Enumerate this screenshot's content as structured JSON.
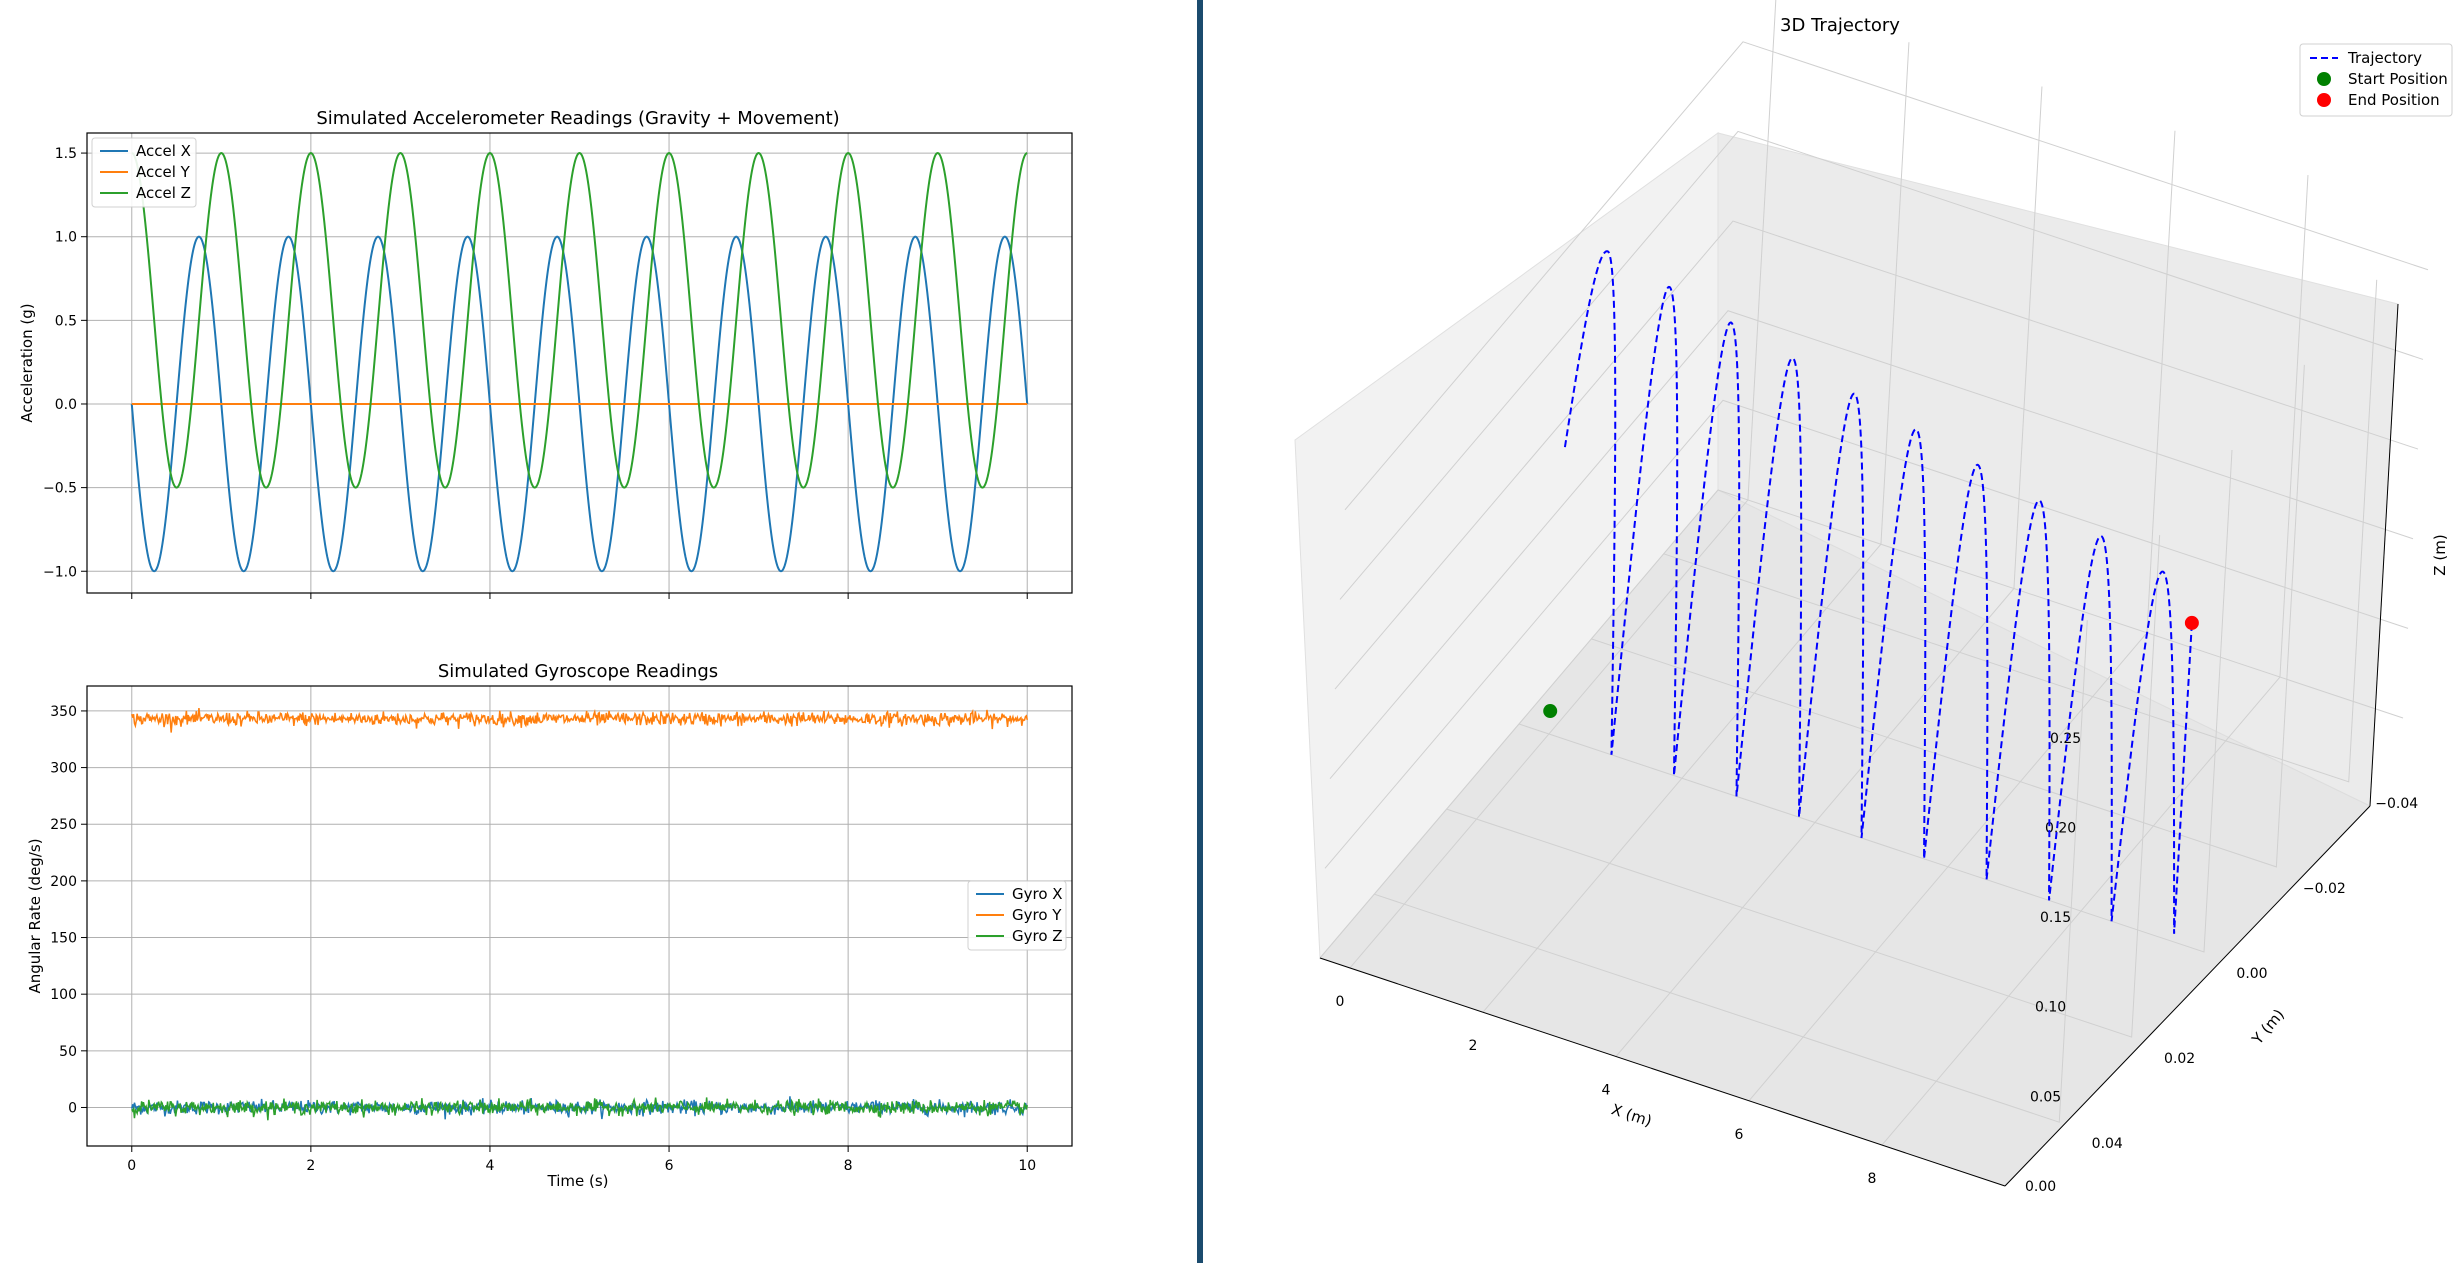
{
  "window": {
    "divider_color": "#1b4b6e"
  },
  "chart_data": [
    {
      "type": "line",
      "title": "Simulated Accelerometer Readings (Gravity + Movement)",
      "xlabel": "",
      "ylabel": "Acceleration (g)",
      "xlim": [
        -0.5,
        10.5
      ],
      "ylim": [
        -1.13,
        1.62
      ],
      "xticks": [
        0,
        2,
        4,
        6,
        8,
        10
      ],
      "xtick_labels_visible": false,
      "yticks": [
        -1.0,
        -0.5,
        0.0,
        0.5,
        1.0,
        1.5
      ],
      "ytick_labels": [
        "−1.0",
        "−0.5",
        "0.0",
        "0.5",
        "1.0",
        "1.5"
      ],
      "grid": true,
      "legend_position": "upper-left",
      "series": [
        {
          "name": "Accel X",
          "color": "#1f77b4",
          "formula": "-sin(2*pi*1*t)",
          "frequency_hz": 1.0,
          "amplitude": 1.0,
          "offset": 0.0
        },
        {
          "name": "Accel Y",
          "color": "#ff7f0e",
          "formula": "0",
          "amplitude": 0.0,
          "offset": 0.0
        },
        {
          "name": "Accel Z",
          "color": "#2ca02c",
          "formula": "0.5 + cos(2*pi*1*t)",
          "frequency_hz": 1.0,
          "amplitude": 1.0,
          "offset": 0.5
        }
      ],
      "t_range": [
        0,
        10
      ]
    },
    {
      "type": "line",
      "title": "Simulated Gyroscope Readings",
      "xlabel": "Time (s)",
      "ylabel": "Angular Rate (deg/s)",
      "xlim": [
        -0.5,
        10.5
      ],
      "ylim": [
        -34,
        372
      ],
      "xticks": [
        0,
        2,
        4,
        6,
        8,
        10
      ],
      "yticks": [
        0,
        50,
        100,
        150,
        200,
        250,
        300,
        350
      ],
      "grid": true,
      "legend_position": "center-right",
      "series": [
        {
          "name": "Gyro X",
          "color": "#1f77b4",
          "mean": 0,
          "noise_std": 3
        },
        {
          "name": "Gyro Y",
          "color": "#ff7f0e",
          "mean": 343,
          "noise_std": 3
        },
        {
          "name": "Gyro Z",
          "color": "#2ca02c",
          "mean": 0,
          "noise_std": 3
        }
      ],
      "t_range": [
        0,
        10
      ]
    },
    {
      "type": "line",
      "title": "3D Trajectory",
      "xlabel": "X (m)",
      "ylabel": "Y (m)",
      "zlabel": "Z (m)",
      "xticks": [
        0,
        2,
        4,
        6,
        8
      ],
      "yticks": [
        -0.04,
        -0.02,
        0.0,
        0.02,
        0.04
      ],
      "ytick_labels": [
        "−0.04",
        "−0.02",
        "0.00",
        "0.02",
        "0.04"
      ],
      "zticks": [
        0.0,
        0.05,
        0.1,
        0.15,
        0.2,
        0.25
      ],
      "ztick_labels": [
        "0.00",
        "0.05",
        "0.10",
        "0.15",
        "0.20",
        "0.25"
      ],
      "legend_position": "upper-right",
      "series": [
        {
          "name": "Trajectory",
          "color": "#0000ff",
          "style": "dashed",
          "arches": 10,
          "x_range": [
            0,
            9.4
          ],
          "z_start": 0.16,
          "z_peak": 0.275,
          "z_end": 0.178
        },
        {
          "name": "Start Position",
          "color": "#008000",
          "marker": "circle",
          "point": [
            0,
            0,
            0.16
          ]
        },
        {
          "name": "End Position",
          "color": "#ff0000",
          "marker": "circle",
          "point": [
            9.4,
            0,
            0.178
          ]
        }
      ]
    }
  ]
}
